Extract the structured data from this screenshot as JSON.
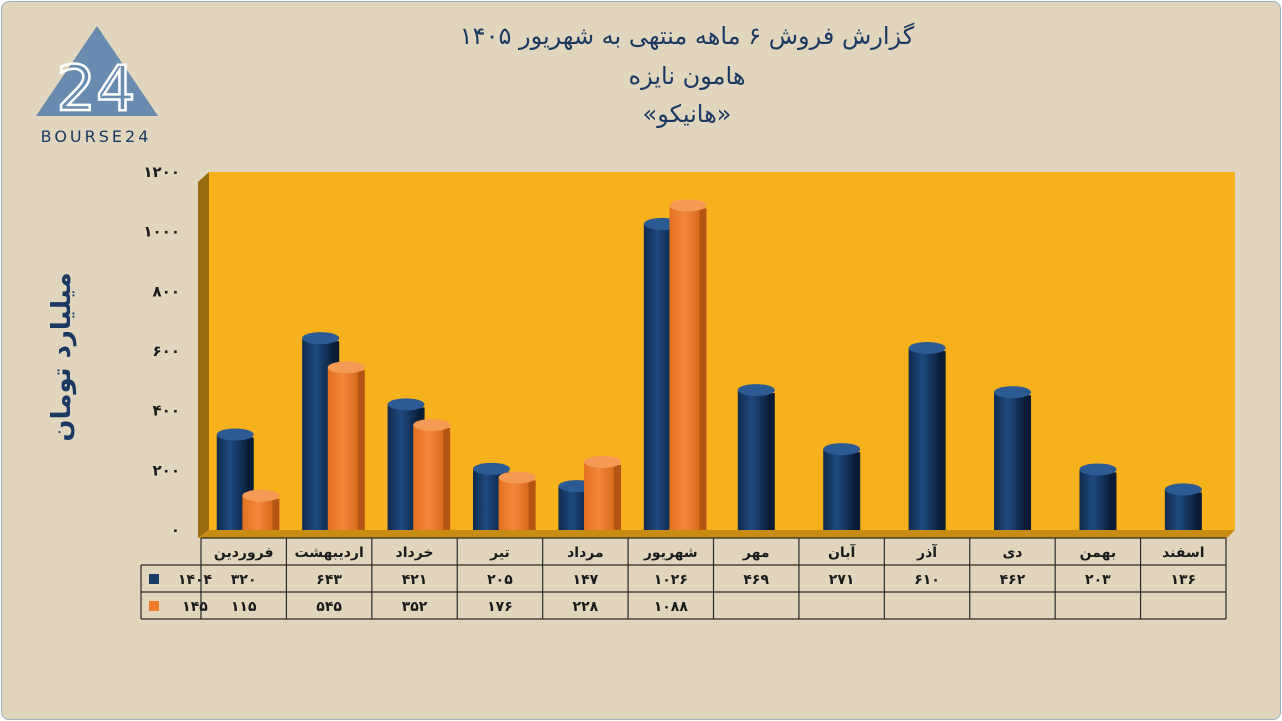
{
  "title": {
    "line1": "گزارش  فروش ۶ ماهه منتهی به شهریور ۱۴۰۵",
    "line2": "هامون نایزه",
    "line3": "«هانیکو»"
  },
  "logo": {
    "number": "24",
    "text": "BOURSE24"
  },
  "colors": {
    "series1": "#173a66",
    "series2": "#ef7d2d",
    "plot_bg": "#f7b11c",
    "wall_side": "#9a6c10"
  },
  "chart_data": {
    "type": "bar",
    "title": "گزارش  فروش ۶ ماهه منتهی به شهریور ۱۴۰۵",
    "ylabel": "میلیارد تومان",
    "ylim": [
      0,
      1200
    ],
    "yticks": [
      0,
      200,
      400,
      600,
      800,
      1000,
      1200
    ],
    "ytick_labels": [
      "۰",
      "۲۰۰",
      "۴۰۰",
      "۶۰۰",
      "۸۰۰",
      "۱۰۰۰",
      "۱۲۰۰"
    ],
    "categories": [
      "فروردین",
      "اردیبهشت",
      "خرداد",
      "تیر",
      "مرداد",
      "شهریور",
      "مهر",
      "آبان",
      "آذر",
      "دی",
      "بهمن",
      "اسفند"
    ],
    "series": [
      {
        "name": "۱۴۰۴",
        "values": [
          320,
          643,
          421,
          205,
          147,
          1026,
          469,
          271,
          610,
          462,
          203,
          136
        ],
        "labels": [
          "۳۲۰",
          "۶۴۳",
          "۴۲۱",
          "۲۰۵",
          "۱۴۷",
          "۱۰۲۶",
          "۴۶۹",
          "۲۷۱",
          "۶۱۰",
          "۴۶۲",
          "۲۰۳",
          "۱۳۶"
        ]
      },
      {
        "name": "۱۴۵",
        "values": [
          115,
          545,
          352,
          176,
          228,
          1088,
          null,
          null,
          null,
          null,
          null,
          null
        ],
        "labels": [
          "۱۱۵",
          "۵۴۵",
          "۳۵۲",
          "۱۷۶",
          "۲۲۸",
          "۱۰۸۸",
          "",
          "",
          "",
          "",
          "",
          ""
        ]
      }
    ],
    "legend": "data-table",
    "grid": false
  }
}
